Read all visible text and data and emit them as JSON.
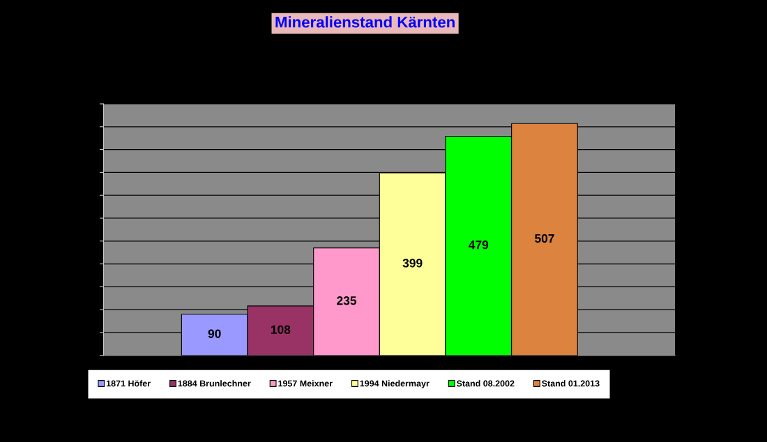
{
  "chart_data": {
    "type": "bar",
    "title": "Mineralienstand Kärnten",
    "categories": [
      null
    ],
    "series": [
      {
        "name": "1871 Höfer",
        "color": "#9999ff",
        "values": [
          90
        ]
      },
      {
        "name": "1884 Brunlechner",
        "color": "#993366",
        "values": [
          108
        ]
      },
      {
        "name": "1957 Meixner",
        "color": "#ff99cc",
        "values": [
          235
        ]
      },
      {
        "name": "1994 Niedermayr",
        "color": "#ffff99",
        "values": [
          399
        ]
      },
      {
        "name": "Stand 08.2002",
        "color": "#00ff00",
        "values": [
          479
        ]
      },
      {
        "name": "Stand 01.2013",
        "color": "#dc843f",
        "values": [
          507
        ]
      }
    ],
    "ylim": [
      0,
      550
    ],
    "yticks": [
      {
        "value": 0,
        "label": null
      },
      {
        "value": 50,
        "label": null
      },
      {
        "value": 100,
        "label": null
      },
      {
        "value": 150,
        "label": null
      },
      {
        "value": 200,
        "label": null
      },
      {
        "value": 250,
        "label": null
      },
      {
        "value": 300,
        "label": null
      },
      {
        "value": 350,
        "label": null
      },
      {
        "value": 400,
        "label": null
      },
      {
        "value": 450,
        "label": null
      },
      {
        "value": 500,
        "label": null
      },
      {
        "value": 550,
        "label": null
      }
    ],
    "grid": "y",
    "legend": "bottom",
    "data_labels": true
  }
}
